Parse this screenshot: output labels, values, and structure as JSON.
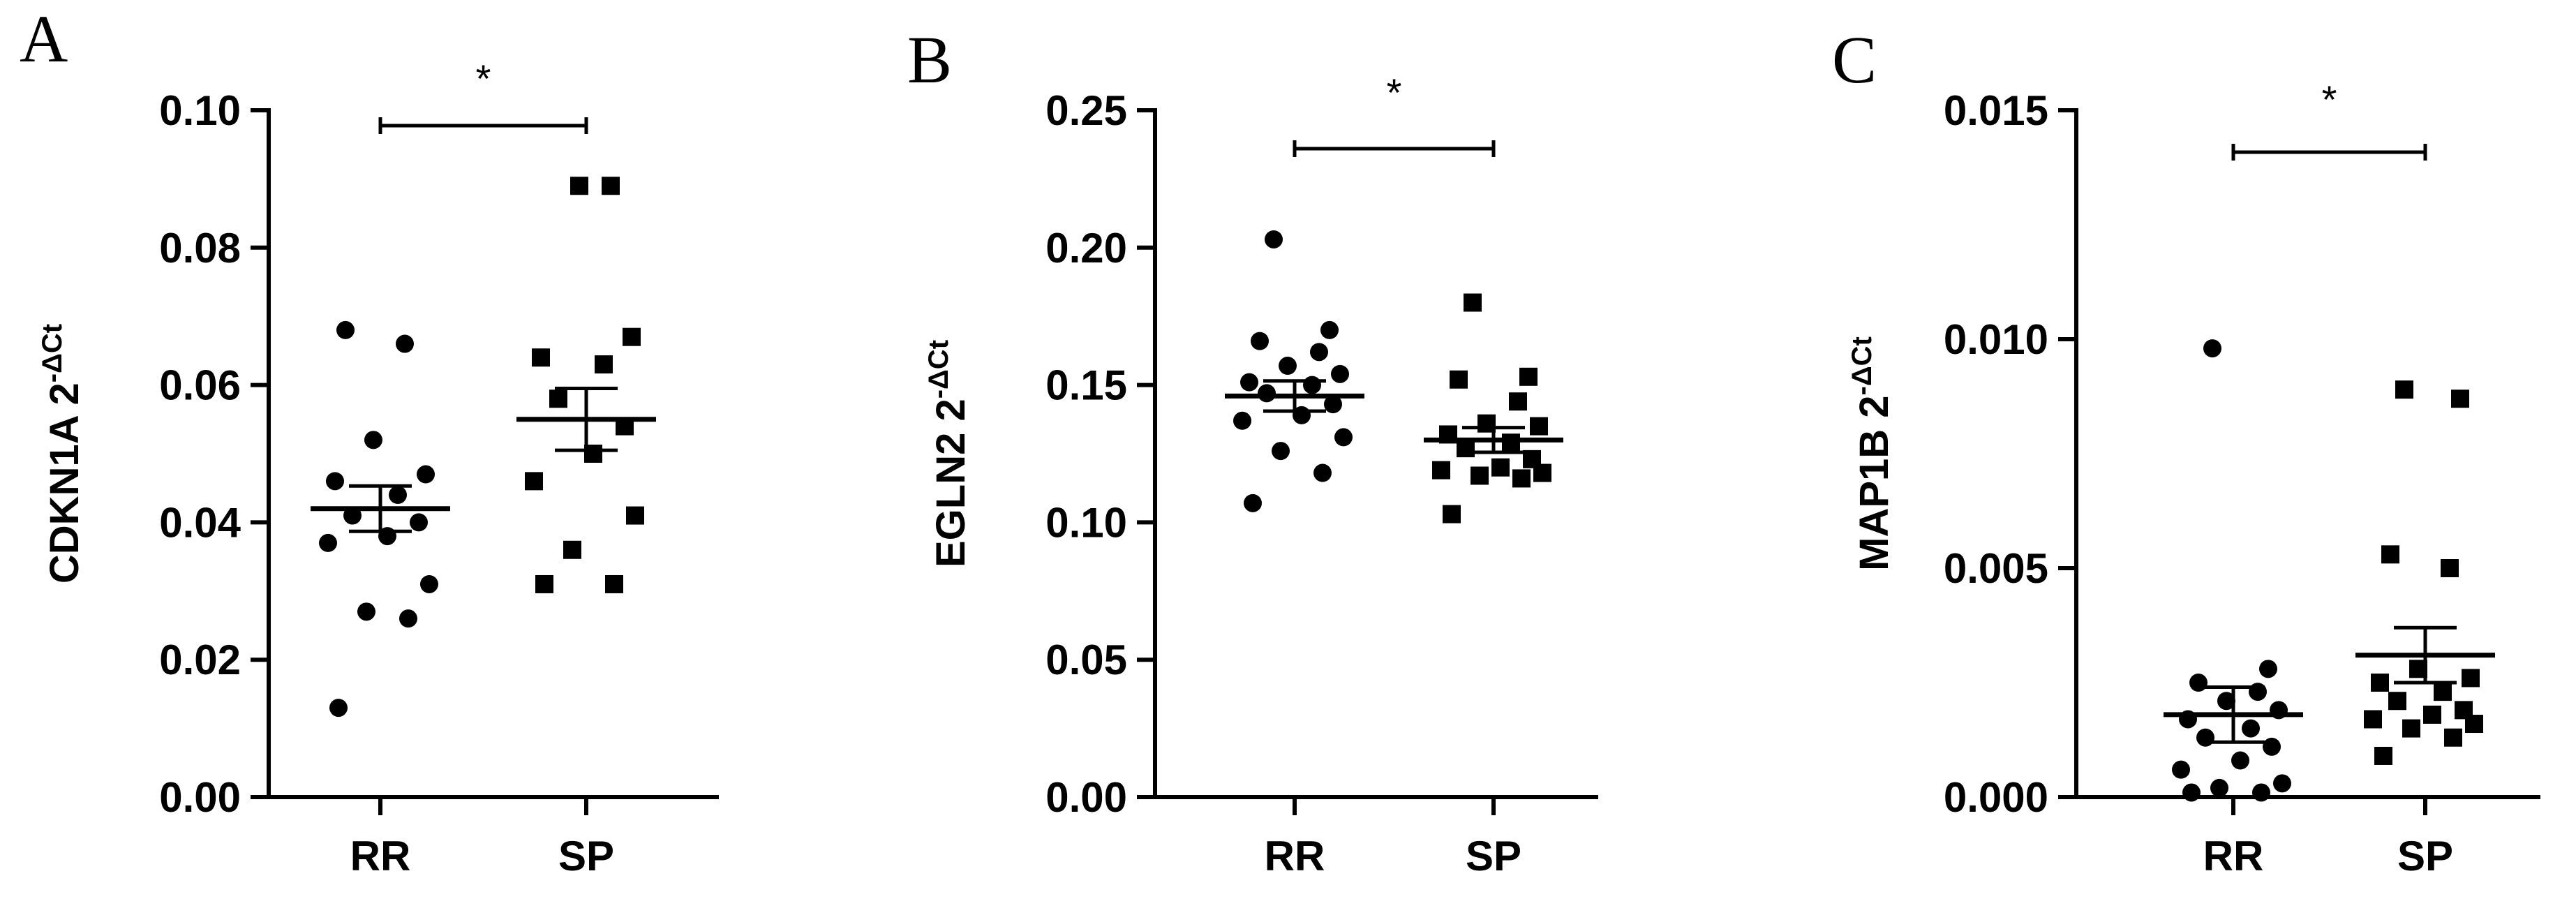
{
  "chart_data": [
    {
      "type": "scatter",
      "panel": "A",
      "ylabel": "CDKN1A 2",
      "ylabel_sup": "-ΔCt",
      "ylim": [
        0,
        0.1
      ],
      "yticks": [
        0.0,
        0.02,
        0.04,
        0.06,
        0.08,
        0.1
      ],
      "ytick_labels": [
        "0.00",
        "0.02",
        "0.04",
        "0.06",
        "0.08",
        "0.10"
      ],
      "categories": [
        "RR",
        "SP"
      ],
      "significance": "*",
      "series": [
        {
          "category": "RR",
          "marker": "circle",
          "values": [
            0.013,
            0.026,
            0.027,
            0.031,
            0.037,
            0.038,
            0.04,
            0.041,
            0.044,
            0.046,
            0.047,
            0.052,
            0.066,
            0.068
          ],
          "mean": 0.042,
          "sem": 0.0033
        },
        {
          "category": "SP",
          "marker": "square",
          "values": [
            0.031,
            0.031,
            0.036,
            0.041,
            0.046,
            0.05,
            0.054,
            0.058,
            0.063,
            0.064,
            0.067,
            0.089,
            0.089
          ],
          "mean": 0.055,
          "sem": 0.0045
        }
      ]
    },
    {
      "type": "scatter",
      "panel": "B",
      "ylabel": "EGLN2 2",
      "ylabel_sup": "-ΔCt",
      "ylim": [
        0,
        0.25
      ],
      "yticks": [
        0.0,
        0.05,
        0.1,
        0.15,
        0.2,
        0.25
      ],
      "ytick_labels": [
        "0.00",
        "0.05",
        "0.10",
        "0.15",
        "0.20",
        "0.25"
      ],
      "categories": [
        "RR",
        "SP"
      ],
      "significance": "*",
      "series": [
        {
          "category": "RR",
          "marker": "circle",
          "values": [
            0.107,
            0.118,
            0.126,
            0.131,
            0.137,
            0.139,
            0.143,
            0.147,
            0.15,
            0.151,
            0.154,
            0.157,
            0.162,
            0.166,
            0.17,
            0.203
          ],
          "mean": 0.146,
          "sem": 0.0055
        },
        {
          "category": "SP",
          "marker": "square",
          "values": [
            0.103,
            0.116,
            0.117,
            0.118,
            0.119,
            0.12,
            0.123,
            0.127,
            0.129,
            0.132,
            0.135,
            0.136,
            0.144,
            0.152,
            0.153,
            0.18
          ],
          "mean": 0.13,
          "sem": 0.0045
        }
      ]
    },
    {
      "type": "scatter",
      "panel": "C",
      "ylabel": "MAP1B 2",
      "ylabel_sup": "-ΔCt",
      "ylim": [
        0,
        0.015
      ],
      "yticks": [
        0.0,
        0.005,
        0.01,
        0.015
      ],
      "ytick_labels": [
        "0.000",
        "0.005",
        "0.010",
        "0.015"
      ],
      "categories": [
        "RR",
        "SP"
      ],
      "significance": "*",
      "series": [
        {
          "category": "RR",
          "marker": "circle",
          "values": [
            0.0001,
            0.0001,
            0.0002,
            0.0003,
            0.0006,
            0.0008,
            0.0011,
            0.0013,
            0.0015,
            0.0017,
            0.0019,
            0.0021,
            0.0023,
            0.0025,
            0.0028,
            0.0098
          ],
          "mean": 0.0018,
          "sem": 0.0006
        },
        {
          "category": "SP",
          "marker": "square",
          "values": [
            0.0009,
            0.0013,
            0.0015,
            0.0016,
            0.0017,
            0.0018,
            0.0019,
            0.0021,
            0.0023,
            0.0025,
            0.0026,
            0.0028,
            0.005,
            0.0053,
            0.0087,
            0.0089
          ],
          "mean": 0.0031,
          "sem": 0.0006
        }
      ]
    }
  ]
}
